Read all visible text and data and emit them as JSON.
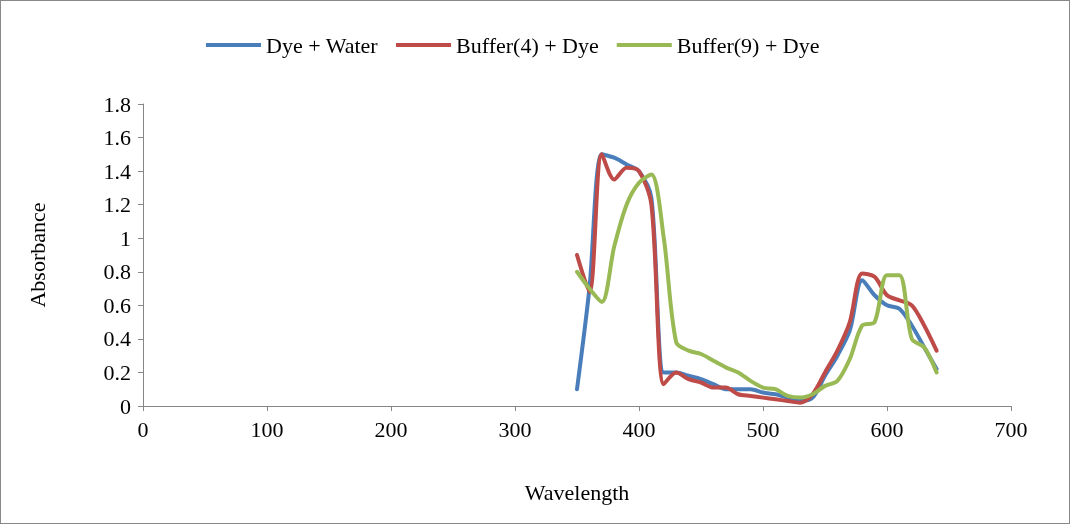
{
  "chart_data": {
    "type": "line",
    "xlabel": "Wavelength",
    "ylabel": "Absorbance",
    "x": [
      350,
      360,
      370,
      380,
      390,
      400,
      410,
      420,
      430,
      440,
      450,
      460,
      470,
      480,
      490,
      500,
      510,
      520,
      530,
      540,
      550,
      560,
      570,
      580,
      590,
      600,
      610,
      620,
      630,
      640
    ],
    "series": [
      {
        "name": "Dye + Water",
        "color": "#4a7ebb",
        "values": [
          0.1,
          0.7,
          1.5,
          1.48,
          1.44,
          1.4,
          1.24,
          0.2,
          0.2,
          0.18,
          0.16,
          0.13,
          0.1,
          0.1,
          0.1,
          0.08,
          0.07,
          0.05,
          0.03,
          0.05,
          0.18,
          0.3,
          0.45,
          0.75,
          0.66,
          0.6,
          0.58,
          0.48,
          0.35,
          0.22
        ]
      },
      {
        "name": "Buffer(4) + Dye",
        "color": "#be4b48",
        "values": [
          0.9,
          0.68,
          1.5,
          1.35,
          1.42,
          1.4,
          1.2,
          0.13,
          0.2,
          0.16,
          0.14,
          0.11,
          0.11,
          0.07,
          0.06,
          0.05,
          0.04,
          0.03,
          0.02,
          0.07,
          0.2,
          0.33,
          0.5,
          0.79,
          0.77,
          0.66,
          0.63,
          0.6,
          0.48,
          0.33
        ]
      },
      {
        "name": "Buffer(9) + Dye",
        "color": "#98b954",
        "values": [
          0.8,
          0.7,
          0.62,
          0.95,
          1.2,
          1.33,
          1.38,
          1.0,
          0.38,
          0.33,
          0.31,
          0.27,
          0.23,
          0.2,
          0.15,
          0.11,
          0.1,
          0.06,
          0.05,
          0.07,
          0.12,
          0.15,
          0.28,
          0.48,
          0.5,
          0.78,
          0.78,
          0.4,
          0.35,
          0.2
        ]
      }
    ],
    "xlim": [
      0,
      700
    ],
    "xticks": [
      0,
      100,
      200,
      300,
      400,
      500,
      600,
      700
    ],
    "ylim": [
      0,
      1.8
    ],
    "yticks": [
      0,
      0.2,
      0.4,
      0.6,
      0.8,
      1,
      1.2,
      1.4,
      1.6,
      1.8
    ],
    "grid": false,
    "legend": "top",
    "marker": "none",
    "line_style": "solid"
  }
}
